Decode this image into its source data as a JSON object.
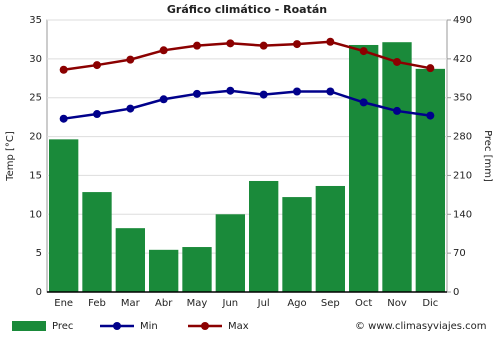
{
  "chart_data": {
    "type": "bar",
    "title": "Gráfico climático - Roatán",
    "y_label": "Temp [°C]",
    "y2_label": "Prec [mm]",
    "categories": [
      "Ene",
      "Feb",
      "Mar",
      "Abr",
      "May",
      "Jun",
      "Jul",
      "Ago",
      "Sep",
      "Oct",
      "Nov",
      "Dic"
    ],
    "series": [
      {
        "name": "Prec",
        "type": "bar",
        "axis": "y2",
        "color": "#1a8a3a",
        "values": [
          275,
          180,
          115,
          76,
          81,
          140,
          200,
          171,
          191,
          445,
          450,
          402
        ]
      },
      {
        "name": "Min",
        "type": "line",
        "color": "#00008b",
        "values": [
          22.3,
          22.9,
          23.6,
          24.8,
          25.5,
          25.9,
          25.4,
          25.8,
          25.8,
          24.4,
          23.3,
          22.7
        ]
      },
      {
        "name": "Max",
        "type": "line",
        "color": "#8b0000",
        "values": [
          28.6,
          29.2,
          29.9,
          31.1,
          31.7,
          32.0,
          31.7,
          31.9,
          32.2,
          31.0,
          29.6,
          28.8
        ]
      }
    ],
    "ylim": [
      0,
      35
    ],
    "yticks": [
      0,
      5,
      10,
      15,
      20,
      25,
      30,
      35
    ],
    "y2lim": [
      0,
      490
    ],
    "y2ticks": [
      0,
      70,
      140,
      210,
      280,
      350,
      420,
      490
    ],
    "grid": true,
    "source": "© www.climasyviajes.com"
  }
}
